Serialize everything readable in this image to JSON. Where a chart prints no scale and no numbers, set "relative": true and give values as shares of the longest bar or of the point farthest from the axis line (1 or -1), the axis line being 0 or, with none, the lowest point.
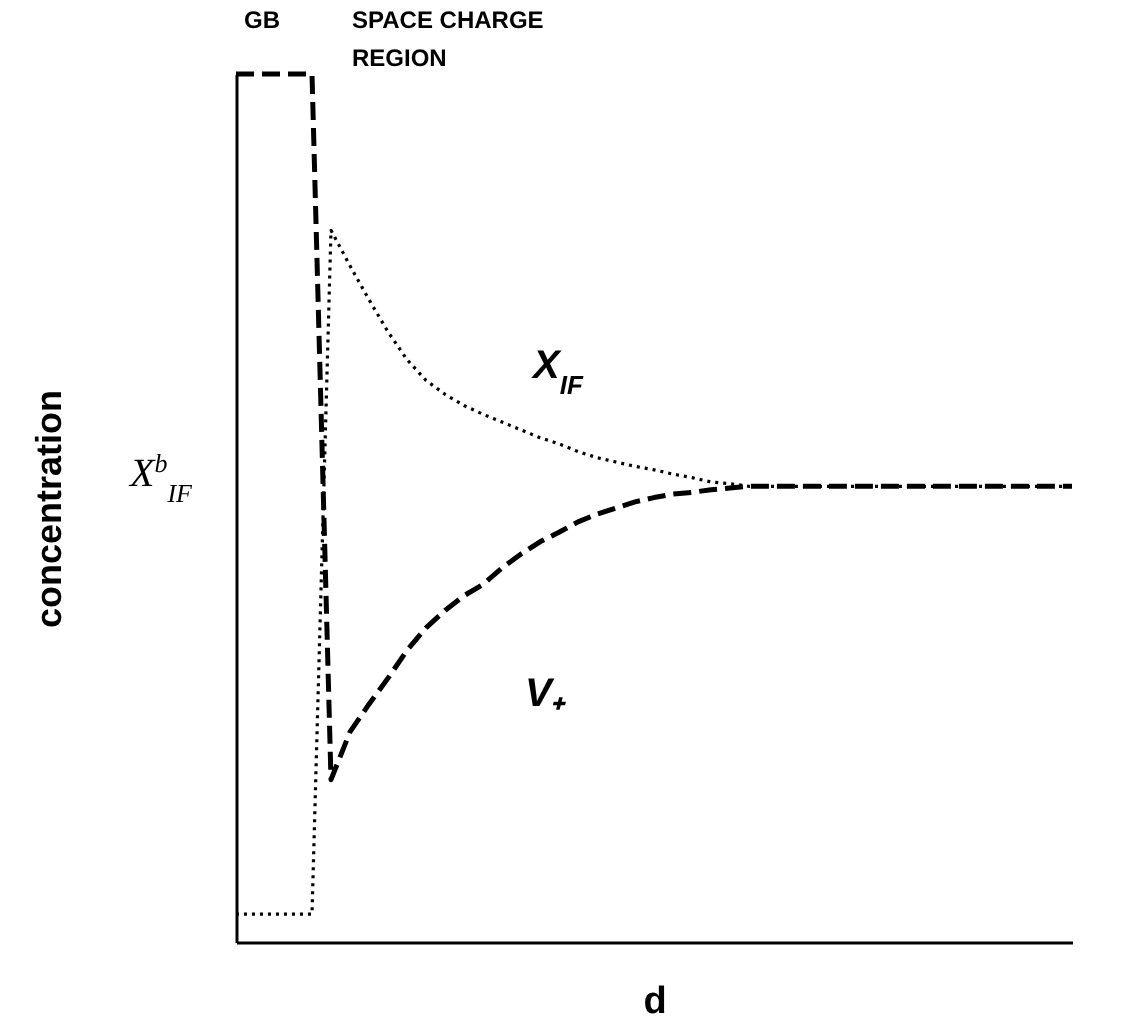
{
  "chart_data": {
    "type": "line",
    "relative": true,
    "xlabel": "d",
    "ylabel": "concentration",
    "categories": [
      null,
      null,
      null,
      null,
      null,
      null,
      null,
      null,
      null,
      null,
      null,
      null,
      null,
      null,
      null,
      null,
      null,
      null,
      null,
      null,
      null,
      null,
      null,
      null,
      null,
      null,
      null,
      null,
      null,
      null,
      null,
      null,
      null,
      null,
      null,
      null,
      null,
      null,
      null,
      null,
      null,
      null,
      null,
      null,
      null
    ],
    "annotations": [
      "GB",
      "SPACE  CHARGE REGION",
      "X$^{b}$$_{IF}$"
    ],
    "series": [
      {
        "name": "X$_{IF}$",
        "color": "#000000",
        "line_style": "dotted",
        "values": [
          0.032,
          0.032,
          0.032,
          0.032,
          0.032,
          0.82,
          0.779,
          0.74,
          0.703,
          0.671,
          0.647,
          0.631,
          0.618,
          0.608,
          0.599,
          0.59,
          0.581,
          0.574,
          0.565,
          0.558,
          0.553,
          0.548,
          0.544,
          0.539,
          0.535,
          0.53,
          0.528,
          0.525,
          0.525,
          0.525,
          0.525,
          0.525,
          0.525,
          0.525,
          0.525,
          0.525,
          0.525,
          0.525,
          0.525,
          0.525,
          0.525,
          0.525,
          0.525,
          0.525,
          0.525
        ]
      },
      {
        "name": "V₊",
        "color": "#000000",
        "line_style": "dashed",
        "values": [
          1,
          1,
          1,
          1,
          1,
          0.187,
          0.242,
          0.274,
          0.304,
          0.336,
          0.362,
          0.382,
          0.399,
          0.412,
          0.431,
          0.447,
          0.461,
          0.472,
          0.484,
          0.493,
          0.5,
          0.507,
          0.512,
          0.516,
          0.518,
          0.521,
          0.523,
          0.525,
          0.525,
          0.525,
          0.525,
          0.525,
          0.525,
          0.525,
          0.525,
          0.525,
          0.525,
          0.525,
          0.525,
          0.525,
          0.525,
          0.525,
          0.525,
          0.525,
          0.525
        ]
      }
    ]
  }
}
